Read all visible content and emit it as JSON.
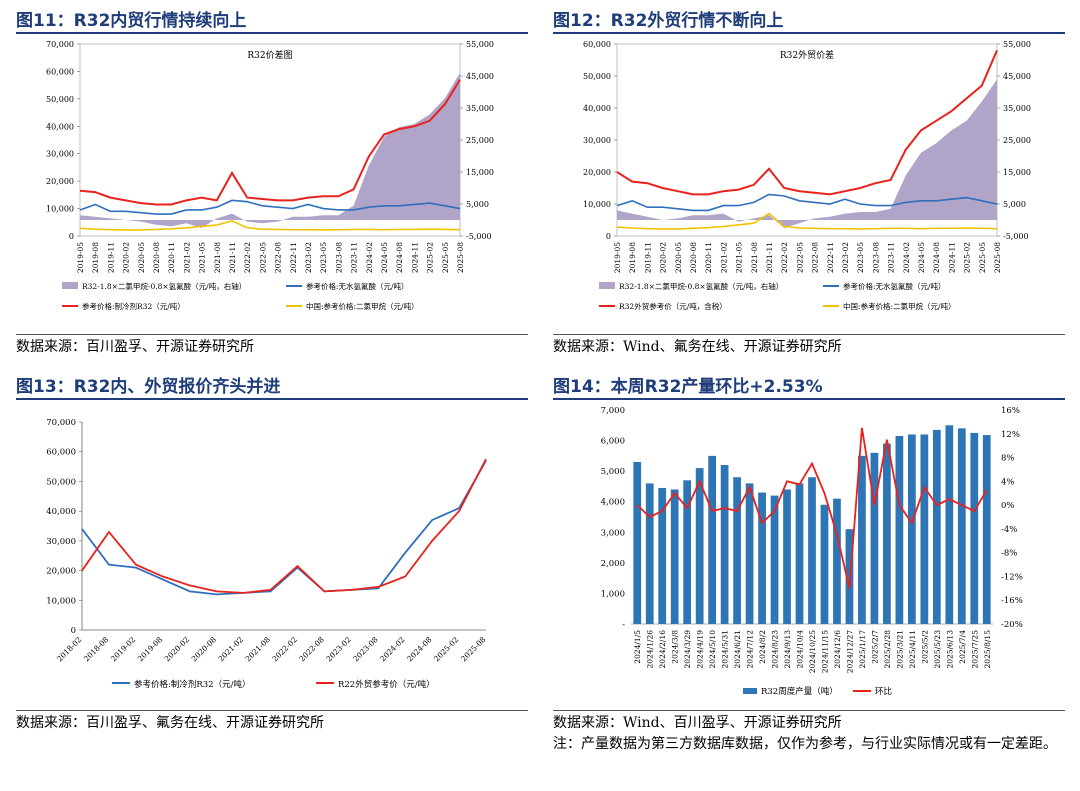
{
  "colors": {
    "title": "#1f3d7a",
    "spread_area": "#b0a4c8",
    "red": "#e8221c",
    "blue": "#2f6fbd",
    "yellow": "#f2c200",
    "bar_blue": "#2e75b6"
  },
  "fig11": {
    "title": "图11：R32内贸行情持续向上",
    "source": "数据来源：百川盈孚、开源证券研究所",
    "chart_data": {
      "type": "area",
      "title": "R32价差图",
      "xlabel": "",
      "ylabel": "",
      "ylim": [
        0,
        70000
      ],
      "y2lim": [
        -5000,
        55000
      ],
      "yticks": [
        "0",
        "10,000",
        "20,000",
        "30,000",
        "40,000",
        "50,000",
        "60,000",
        "70,000"
      ],
      "y2ticks": [
        "-5,000",
        "5,000",
        "15,000",
        "25,000",
        "35,000",
        "45,000",
        "55,000"
      ],
      "x": [
        "2019-05",
        "2019-08",
        "2019-11",
        "2020-02",
        "2020-05",
        "2020-08",
        "2020-11",
        "2021-02",
        "2021-05",
        "2021-08",
        "2021-11",
        "2022-02",
        "2022-05",
        "2022-08",
        "2022-11",
        "2023-02",
        "2023-05",
        "2023-08",
        "2023-11",
        "2024-02",
        "2024-05",
        "2024-08",
        "2024-11",
        "2025-02",
        "2025-05",
        "2025-08"
      ],
      "legend": [
        "R32-1.8×二氯甲烷-0.8×氢氟酸（元/吨，右轴）",
        "参考价格:无水氢氟酸（元/吨）",
        "参考价格:制冷剂R32（元/吨）",
        "中国:参考价格:二氯甲烷（元/吨）"
      ],
      "series": [
        {
          "name": "R32-1.8×二氯甲烷-0.8×氢氟酸（元/吨，右轴）",
          "axis": "right",
          "values": [
            1500,
            1000,
            500,
            0,
            -500,
            -1500,
            -2000,
            -1000,
            -2500,
            500,
            2000,
            -500,
            -1000,
            -500,
            1000,
            1000,
            1500,
            1500,
            4500,
            17000,
            26000,
            29000,
            30000,
            33000,
            38000,
            46000
          ]
        },
        {
          "name": "参考价格:制冷剂R32（元/吨）",
          "axis": "left",
          "values": [
            16500,
            16000,
            14000,
            13000,
            12000,
            11500,
            11500,
            13000,
            14000,
            13000,
            23000,
            14000,
            13500,
            13000,
            13000,
            14000,
            14500,
            14500,
            17000,
            29000,
            37000,
            39000,
            40000,
            42000,
            48000,
            57000
          ]
        },
        {
          "name": "参考价格:无水氢氟酸（元/吨）",
          "axis": "left",
          "values": [
            9500,
            11500,
            9000,
            9000,
            8500,
            8000,
            8000,
            9500,
            9500,
            10500,
            13000,
            12500,
            11000,
            10500,
            10000,
            11500,
            10000,
            9500,
            9500,
            10500,
            11000,
            11000,
            11500,
            12000,
            11000,
            10000
          ]
        },
        {
          "name": "中国:参考价格:二氯甲烷（元/吨）",
          "axis": "left",
          "values": [
            2800,
            2500,
            2300,
            2200,
            2200,
            2400,
            2600,
            3000,
            3500,
            4000,
            5500,
            3000,
            2500,
            2400,
            2300,
            2300,
            2200,
            2300,
            2400,
            2400,
            2300,
            2400,
            2400,
            2500,
            2400,
            2300
          ]
        }
      ]
    }
  },
  "fig12": {
    "title": "图12：R32外贸行情不断向上",
    "source": "数据来源：Wind、氟务在线、开源证券研究所",
    "chart_data": {
      "type": "area",
      "title": "R32外贸价差",
      "ylim": [
        0,
        60000
      ],
      "y2lim": [
        -5000,
        55000
      ],
      "yticks": [
        "0",
        "10,000",
        "20,000",
        "30,000",
        "40,000",
        "50,000",
        "60,000"
      ],
      "y2ticks": [
        "-5,000",
        "5,000",
        "15,000",
        "25,000",
        "35,000",
        "45,000",
        "55,000"
      ],
      "x": [
        "2019-05",
        "2019-08",
        "2019-11",
        "2020-02",
        "2020-05",
        "2020-08",
        "2020-11",
        "2021-02",
        "2021-05",
        "2021-08",
        "2021-11",
        "2022-02",
        "2022-05",
        "2022-08",
        "2022-11",
        "2023-02",
        "2023-05",
        "2023-08",
        "2023-11",
        "2024-02",
        "2024-05",
        "2024-08",
        "2024-11",
        "2025-02",
        "2025-05",
        "2025-08"
      ],
      "legend": [
        "R32-1.8×二氯甲烷-0.8×氢氟酸（元/吨，右轴）",
        "参考价格:无水氢氟酸（元/吨）",
        "R32外贸参考价（元/吨，含税）",
        "中国:参考价格:二氯甲烷（元/吨）"
      ],
      "series": [
        {
          "name": "R32-1.8×二氯甲烷-0.8×氢氟酸（元/吨，右轴）",
          "axis": "right",
          "values": [
            3000,
            2000,
            1000,
            0,
            500,
            1500,
            1500,
            2000,
            -500,
            500,
            1500,
            -2500,
            -1000,
            500,
            1000,
            2000,
            2500,
            2500,
            3500,
            14000,
            21000,
            24000,
            28000,
            31000,
            37000,
            44000
          ]
        },
        {
          "name": "R32外贸参考价（元/吨，含税）",
          "axis": "left",
          "values": [
            20000,
            17000,
            16500,
            15000,
            14000,
            13000,
            13000,
            14000,
            14500,
            16000,
            21000,
            15000,
            14000,
            13500,
            13000,
            14000,
            15000,
            16500,
            17500,
            27000,
            33000,
            36000,
            39000,
            43000,
            47000,
            58000
          ]
        },
        {
          "name": "参考价格:无水氢氟酸（元/吨）",
          "axis": "left",
          "values": [
            9500,
            11000,
            9000,
            9000,
            8500,
            8000,
            8000,
            9500,
            9500,
            10500,
            13000,
            12500,
            11000,
            10500,
            10000,
            11500,
            10000,
            9500,
            9500,
            10500,
            11000,
            11000,
            11500,
            12000,
            11000,
            10000
          ]
        },
        {
          "name": "中国:参考价格:二氯甲烷（元/吨）",
          "axis": "left",
          "values": [
            2800,
            2500,
            2300,
            2200,
            2200,
            2400,
            2600,
            3000,
            3500,
            4000,
            7000,
            3000,
            2500,
            2400,
            2300,
            2300,
            2200,
            2300,
            2400,
            2400,
            2300,
            2400,
            2400,
            2500,
            2400,
            2300
          ]
        }
      ]
    }
  },
  "fig13": {
    "title": "图13：R32内、外贸报价齐头并进",
    "source": "数据来源：百川盈孚、氟务在线、开源证券研究所",
    "chart_data": {
      "type": "line",
      "ylim": [
        0,
        70000
      ],
      "yticks": [
        "0",
        "10,000",
        "20,000",
        "30,000",
        "40,000",
        "50,000",
        "60,000",
        "70,000"
      ],
      "x": [
        "2018-02",
        "2018-08",
        "2019-02",
        "2019-08",
        "2020-02",
        "2020-08",
        "2021-02",
        "2021-08",
        "2022-02",
        "2022-08",
        "2023-02",
        "2023-08",
        "2024-02",
        "2024-08",
        "2025-02",
        "2025-08"
      ],
      "legend": [
        "参考价格:制冷剂R32（元/吨）",
        "R22外贸参考价（元/吨）"
      ],
      "series": [
        {
          "name": "参考价格:制冷剂R32（元/吨）",
          "values": [
            34000,
            22000,
            21000,
            17000,
            13000,
            12000,
            12500,
            13000,
            21000,
            13000,
            13500,
            14000,
            26000,
            37000,
            41000,
            57000
          ]
        },
        {
          "name": "R22外贸参考价（元/吨）",
          "values": [
            20000,
            33000,
            22000,
            18000,
            15000,
            13000,
            12500,
            13500,
            21500,
            13000,
            13500,
            14500,
            18000,
            30000,
            40000,
            57500
          ]
        }
      ]
    }
  },
  "fig14": {
    "title": "图14：本周R32产量环比+2.53%",
    "source": "数据来源：Wind、百川盈孚、开源证券研究所",
    "note": "注：产量数据为第三方数据库数据，仅作为参考，与行业实际情况或有一定差距。",
    "chart_data": {
      "type": "bar",
      "ylim": [
        0,
        7000
      ],
      "y2lim": [
        -0.2,
        0.16
      ],
      "yticks": [
        "-",
        "1,000",
        "2,000",
        "3,000",
        "4,000",
        "5,000",
        "6,000",
        "7,000"
      ],
      "y2ticks": [
        "-20%",
        "-16%",
        "-12%",
        "-8%",
        "-4%",
        "0%",
        "4%",
        "8%",
        "12%",
        "16%"
      ],
      "x": [
        "2024/1/5",
        "2024/1/26",
        "2024/2/16",
        "2024/3/8",
        "2024/3/29",
        "2024/4/19",
        "2024/5/10",
        "2024/5/31",
        "2024/6/21",
        "2024/7/12",
        "2024/8/2",
        "2024/8/23",
        "2024/9/13",
        "2024/10/4",
        "2024/10/25",
        "2024/11/15",
        "2024/12/6",
        "2024/12/27",
        "2025/1/17",
        "2025/2/7",
        "2025/2/28",
        "2025/3/21",
        "2025/4/11",
        "2025/5/2",
        "2025/5/23",
        "2025/6/13",
        "2025/7/4",
        "2025/7/25",
        "2025/8/15"
      ],
      "legend": [
        "R32周度产量（吨）",
        "环比"
      ],
      "series": [
        {
          "name": "R32周度产量（吨）",
          "values": [
            5300,
            4600,
            4450,
            4400,
            4700,
            5100,
            5500,
            5200,
            4800,
            4600,
            4300,
            4200,
            4400,
            4600,
            4800,
            3900,
            4100,
            3100,
            5500,
            5600,
            5900,
            6150,
            6200,
            6200,
            6350,
            6500,
            6400,
            6250,
            6180
          ]
        },
        {
          "name": "环比",
          "values": [
            0.0,
            -0.02,
            -0.01,
            0.02,
            -0.005,
            0.04,
            -0.01,
            -0.005,
            -0.01,
            0.03,
            -0.03,
            -0.01,
            0.04,
            0.035,
            0.07,
            0.02,
            -0.05,
            -0.14,
            0.13,
            0.0,
            0.11,
            0.0,
            -0.03,
            0.03,
            0.0,
            0.01,
            0.0,
            -0.01,
            0.0253
          ]
        }
      ]
    }
  }
}
